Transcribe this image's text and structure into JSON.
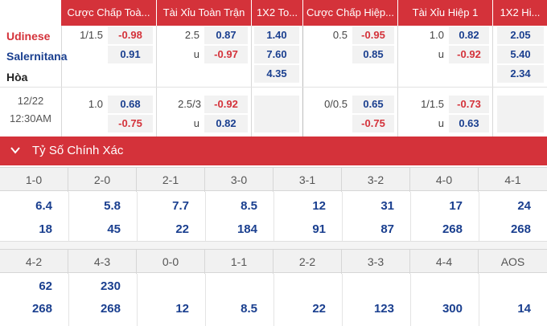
{
  "odds": {
    "headers": [
      "Cược Chấp Toà...",
      "Tài Xỉu Toàn Trận",
      "1X2 To...",
      "Cược Chấp Hiệp...",
      "Tài Xỉu Hiệp 1",
      "1X2 Hi..."
    ],
    "teams": {
      "home": "Udinese",
      "away": "Salernitana",
      "draw": "Hòa"
    },
    "team_colors": {
      "home": "#d4323a",
      "away": "#1a3f8f",
      "draw": "#222222"
    },
    "main": {
      "ah_line": "1/1.5",
      "ah_home": "-0.98",
      "ah_away": "0.91",
      "ou_line": "2.5",
      "ou_over": "0.87",
      "ou_u": "u",
      "ou_under": "-0.97",
      "x12_home": "1.40",
      "x12_away": "7.60",
      "x12_draw": "4.35",
      "h1_ah_line": "0.5",
      "h1_ah_home": "-0.95",
      "h1_ah_away": "0.85",
      "h1_ou_line": "1.0",
      "h1_ou_over": "0.82",
      "h1_ou_u": "u",
      "h1_ou_under": "-0.92",
      "h1_x12_home": "2.05",
      "h1_x12_away": "5.40",
      "h1_x12_draw": "2.34"
    },
    "alt": {
      "date": "12/22",
      "time": "12:30AM",
      "ah_line": "1.0",
      "ah_home": "0.68",
      "ah_away": "-0.75",
      "ou_line": "2.5/3",
      "ou_over": "-0.92",
      "ou_u": "u",
      "ou_under": "0.82",
      "h1_ah_line": "0/0.5",
      "h1_ah_home": "0.65",
      "h1_ah_away": "-0.75",
      "h1_ou_line": "1/1.5",
      "h1_ou_over": "-0.73",
      "h1_ou_u": "u",
      "h1_ou_under": "0.63"
    }
  },
  "section": {
    "title": "Tỷ Số Chính Xác",
    "icon": "chevron-down-icon"
  },
  "scores": {
    "row1": {
      "labels": [
        "1-0",
        "2-0",
        "2-1",
        "3-0",
        "3-1",
        "3-2",
        "4-0",
        "4-1"
      ],
      "home": [
        "6.4",
        "5.8",
        "7.7",
        "8.5",
        "12",
        "31",
        "17",
        "24"
      ],
      "away": [
        "18",
        "45",
        "22",
        "184",
        "91",
        "87",
        "268",
        "268"
      ]
    },
    "row2": {
      "labels": [
        "4-2",
        "4-3",
        "0-0",
        "1-1",
        "2-2",
        "3-3",
        "4-4",
        "AOS"
      ],
      "home": [
        "62",
        "230",
        "",
        "",
        "",
        "",
        "",
        ""
      ],
      "away": [
        "268",
        "268",
        "12",
        "8.5",
        "22",
        "123",
        "300",
        "14"
      ]
    }
  },
  "colors": {
    "accent": "#d4323a",
    "negative": "#d4323a",
    "positive": "#1a3f8f"
  }
}
